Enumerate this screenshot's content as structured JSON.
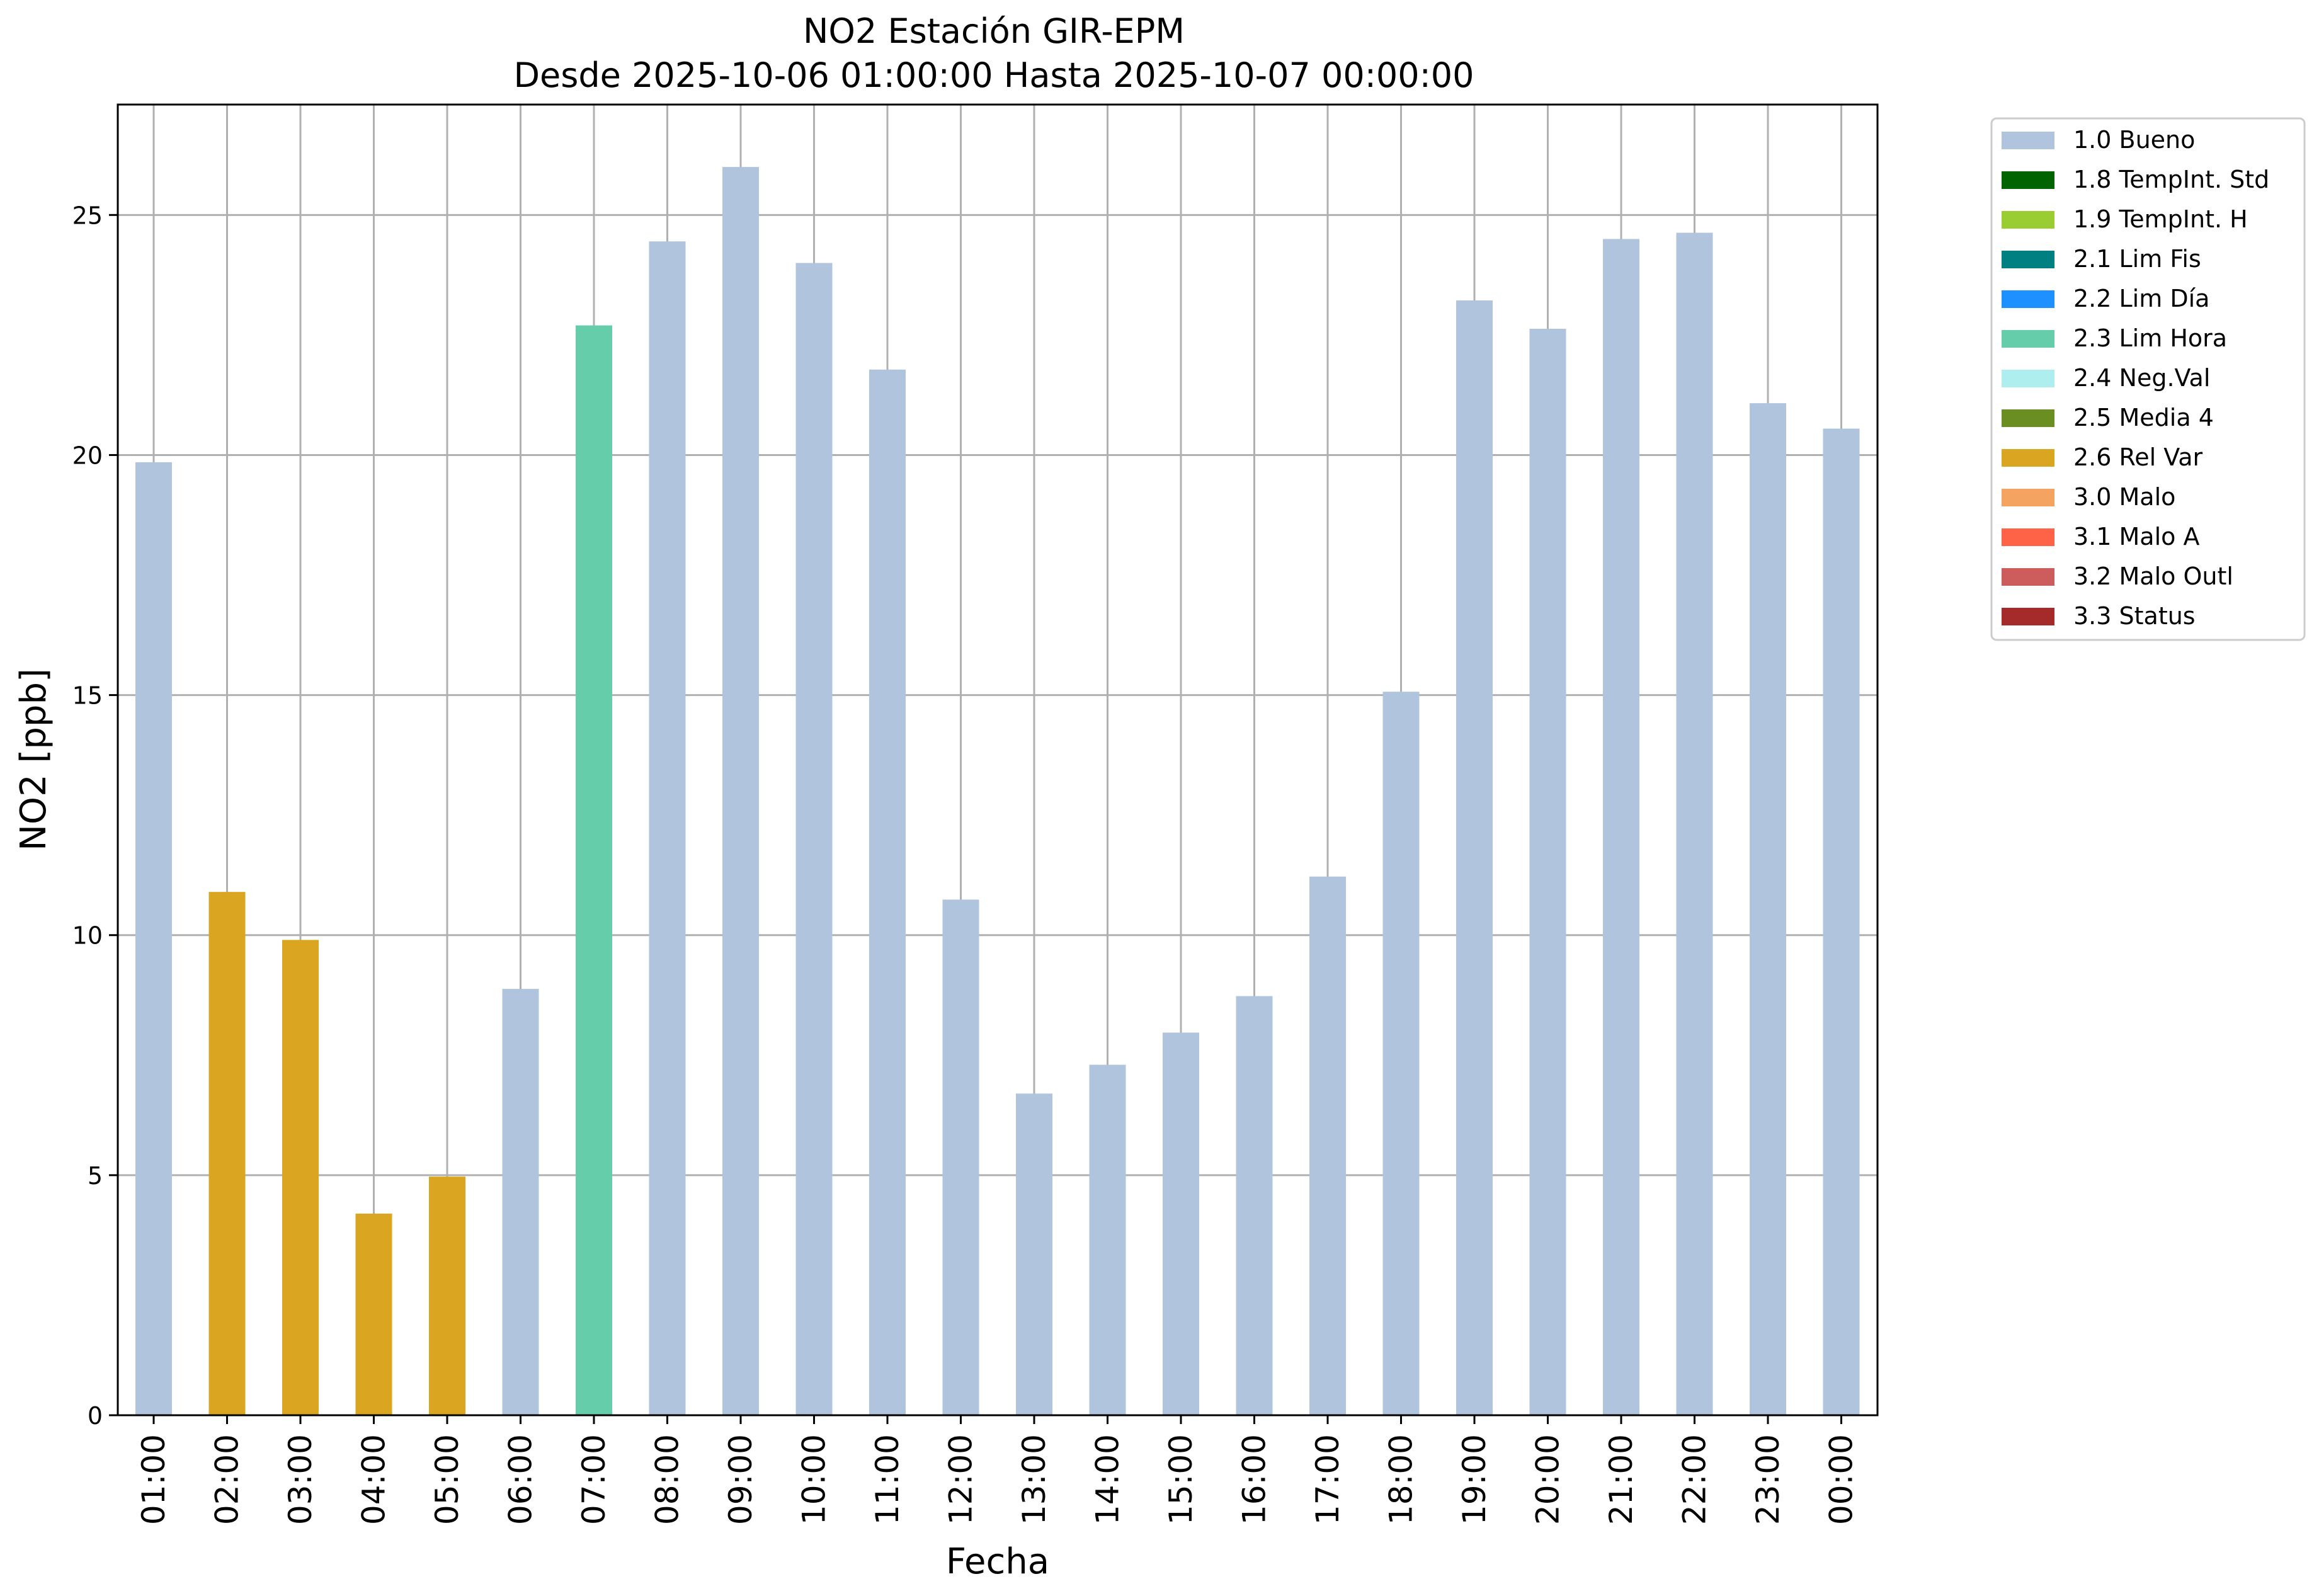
{
  "chart_data": {
    "type": "bar",
    "title": "NO2 Estación GIR-EPM",
    "subtitle": "Desde 2025-10-06 01:00:00 Hasta 2025-10-07 00:00:00",
    "xlabel": "Fecha",
    "ylabel": "NO2 [ppb]",
    "ylim": [
      0,
      27.3
    ],
    "yticks": [
      0,
      5,
      10,
      15,
      20,
      25
    ],
    "grid": true,
    "legend_position": "outside-top-right",
    "categories": [
      "01:00",
      "02:00",
      "03:00",
      "04:00",
      "05:00",
      "06:00",
      "07:00",
      "08:00",
      "09:00",
      "10:00",
      "11:00",
      "12:00",
      "13:00",
      "14:00",
      "15:00",
      "16:00",
      "17:00",
      "18:00",
      "19:00",
      "20:00",
      "21:00",
      "22:00",
      "23:00",
      "00:00"
    ],
    "values": [
      19.85,
      10.9,
      9.9,
      4.2,
      4.97,
      8.88,
      22.7,
      24.45,
      26.0,
      24.0,
      21.78,
      10.74,
      6.7,
      7.3,
      7.97,
      8.73,
      11.22,
      15.07,
      23.22,
      22.63,
      24.5,
      24.63,
      21.08,
      20.55
    ],
    "flags": [
      "1.0 Bueno",
      "2.6 Rel Var",
      "2.6 Rel Var",
      "2.6 Rel Var",
      "2.6 Rel Var",
      "1.0 Bueno",
      "2.3 Lim Hora",
      "1.0 Bueno",
      "1.0 Bueno",
      "1.0 Bueno",
      "1.0 Bueno",
      "1.0 Bueno",
      "1.0 Bueno",
      "1.0 Bueno",
      "1.0 Bueno",
      "1.0 Bueno",
      "1.0 Bueno",
      "1.0 Bueno",
      "1.0 Bueno",
      "1.0 Bueno",
      "1.0 Bueno",
      "1.0 Bueno",
      "1.0 Bueno",
      "1.0 Bueno"
    ],
    "legend": [
      {
        "label": "1.0 Bueno",
        "color": "#b0c4de"
      },
      {
        "label": "1.8 TempInt. Std",
        "color": "#006400"
      },
      {
        "label": "1.9 TempInt. H",
        "color": "#9acd32"
      },
      {
        "label": "2.1 Lim Fis",
        "color": "#008080"
      },
      {
        "label": "2.2 Lim Día",
        "color": "#1e90ff"
      },
      {
        "label": "2.3 Lim Hora",
        "color": "#66cdaa"
      },
      {
        "label": "2.4 Neg.Val",
        "color": "#afeeee"
      },
      {
        "label": "2.5 Media 4",
        "color": "#6b8e23"
      },
      {
        "label": "2.6 Rel Var",
        "color": "#daa520"
      },
      {
        "label": "3.0 Malo",
        "color": "#f4a460"
      },
      {
        "label": "3.1 Malo A",
        "color": "#ff6347"
      },
      {
        "label": "3.2 Malo Outl",
        "color": "#cd5c5c"
      },
      {
        "label": "3.3 Status",
        "color": "#a52a2a"
      }
    ]
  }
}
